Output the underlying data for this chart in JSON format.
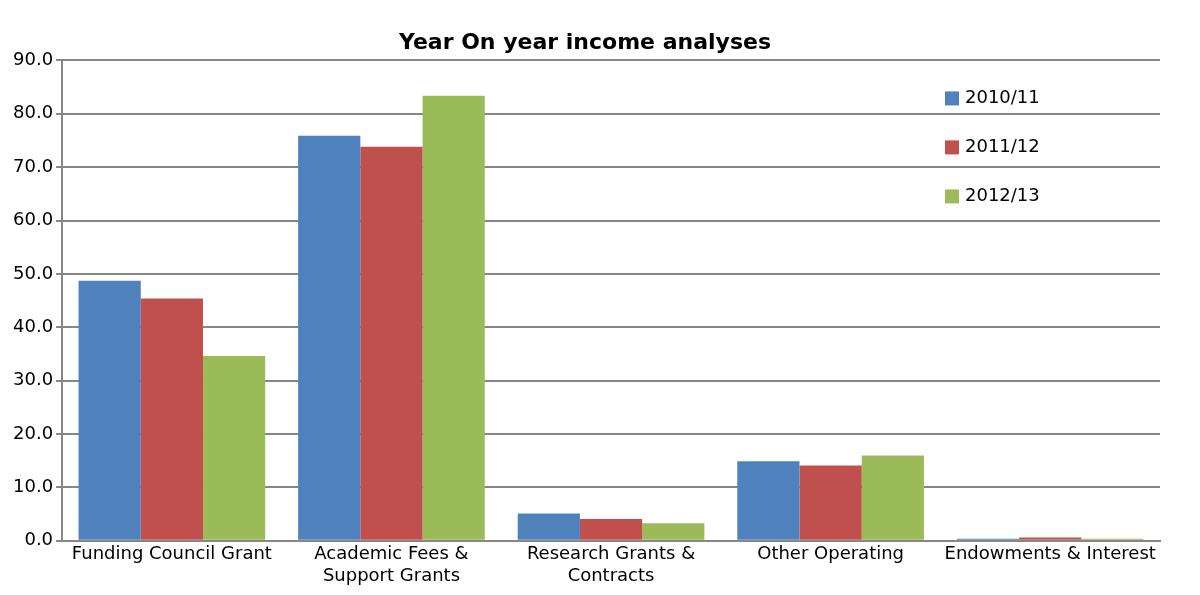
{
  "chart_data": {
    "type": "bar",
    "title": "Year On year income analyses",
    "categories": [
      "Funding Council Grant",
      "Academic Fees & Support Grants",
      "Research Grants & Contracts",
      "Other Operating",
      "Endowments & Interest"
    ],
    "series": [
      {
        "name": "2010/11",
        "color": "#4f81bd",
        "values": [
          48.7,
          75.9,
          5.1,
          14.9,
          0.4
        ]
      },
      {
        "name": "2011/12",
        "color": "#c0504d",
        "values": [
          45.4,
          73.8,
          4.1,
          14.1,
          0.6
        ]
      },
      {
        "name": "2012/13",
        "color": "#9bbb59",
        "values": [
          34.6,
          83.4,
          3.3,
          16.0,
          0.4
        ]
      }
    ],
    "ylim": [
      0,
      90
    ],
    "yticks": [
      {
        "value": 0,
        "label": "0.0"
      },
      {
        "value": 10,
        "label": "10.0"
      },
      {
        "value": 20,
        "label": "20.0"
      },
      {
        "value": 30,
        "label": "30.0"
      },
      {
        "value": 40,
        "label": "40.0"
      },
      {
        "value": 50,
        "label": "50.0"
      },
      {
        "value": 60,
        "label": "60.0"
      },
      {
        "value": 70,
        "label": "70.0"
      },
      {
        "value": 80,
        "label": "80.0"
      },
      {
        "value": 90,
        "label": "90.0"
      }
    ],
    "grid": "y",
    "legend": "top right"
  }
}
